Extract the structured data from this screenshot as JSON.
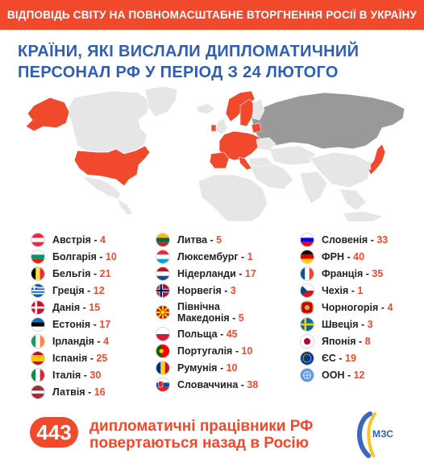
{
  "banner": "ВІДПОВІДЬ СВІТУ НА ПОВНОМАСШТАБНЕ ВТОРГНЕННЯ РОСІЇ В УКРАЇНУ",
  "headline": {
    "line1": "КРАЇНИ, ЯКІ ВИСЛАЛИ ДИПЛОМАТИЧНИЙ",
    "line2": "ПЕРСОНАЛ РФ У ПЕРІОД З 24 ЛЮТОГО"
  },
  "colors": {
    "accent": "#f1492c",
    "headline": "#2f5fb3",
    "map_land": "#e6e6e6",
    "map_russia": "#999999",
    "map_highlight": "#f1492c"
  },
  "columns": [
    [
      {
        "name": "Австрія",
        "count": "4",
        "flag": "austria"
      },
      {
        "name": "Болгарія",
        "count": "10",
        "flag": "bulgaria"
      },
      {
        "name": "Бельгія",
        "count": "21",
        "flag": "belgium"
      },
      {
        "name": "Греція",
        "count": "12",
        "flag": "greece"
      },
      {
        "name": "Данія",
        "count": "15",
        "flag": "denmark"
      },
      {
        "name": "Естонія",
        "count": "17",
        "flag": "estonia"
      },
      {
        "name": "Ірландія",
        "count": "4",
        "flag": "ireland"
      },
      {
        "name": "Іспанія",
        "count": "25",
        "flag": "spain"
      },
      {
        "name": "Італія",
        "count": "30",
        "flag": "italy"
      },
      {
        "name": "Латвія",
        "count": "16",
        "flag": "latvia"
      }
    ],
    [
      {
        "name": "Литва",
        "count": "5",
        "flag": "lithuania"
      },
      {
        "name": "Люксембург",
        "count": "1",
        "flag": "luxembourg"
      },
      {
        "name": "Нідерланди",
        "count": "17",
        "flag": "netherlands"
      },
      {
        "name": "Норвегія",
        "count": "3",
        "flag": "norway"
      },
      {
        "name": "Північна Македонія",
        "count": "5",
        "flag": "north-macedonia",
        "two_line": true,
        "line1": "Північна",
        "line2": "Македонія"
      },
      {
        "name": "Польща",
        "count": "45",
        "flag": "poland"
      },
      {
        "name": "Португалія",
        "count": "10",
        "flag": "portugal"
      },
      {
        "name": "Румунія",
        "count": "10",
        "flag": "romania"
      },
      {
        "name": "Словаччина",
        "count": "38",
        "flag": "slovakia"
      }
    ],
    [
      {
        "name": "Словенія",
        "count": "33",
        "flag": "slovenia"
      },
      {
        "name": "ФРН",
        "count": "40",
        "flag": "germany"
      },
      {
        "name": "Франція",
        "count": "35",
        "flag": "france"
      },
      {
        "name": "Чехія",
        "count": "1",
        "flag": "czechia"
      },
      {
        "name": "Чорногорія",
        "count": "4",
        "flag": "montenegro"
      },
      {
        "name": "Швеція",
        "count": "3",
        "flag": "sweden"
      },
      {
        "name": "Японія",
        "count": "8",
        "flag": "japan"
      },
      {
        "name": "ЄС",
        "count": "19",
        "flag": "eu"
      },
      {
        "name": "ООН",
        "count": "12",
        "flag": "un"
      }
    ]
  ],
  "separator": "-",
  "footer": {
    "total": "443",
    "line1": "дипломатичні працівники РФ",
    "line2": "повертаються назад в Росію"
  },
  "logo_text": "МЗС"
}
